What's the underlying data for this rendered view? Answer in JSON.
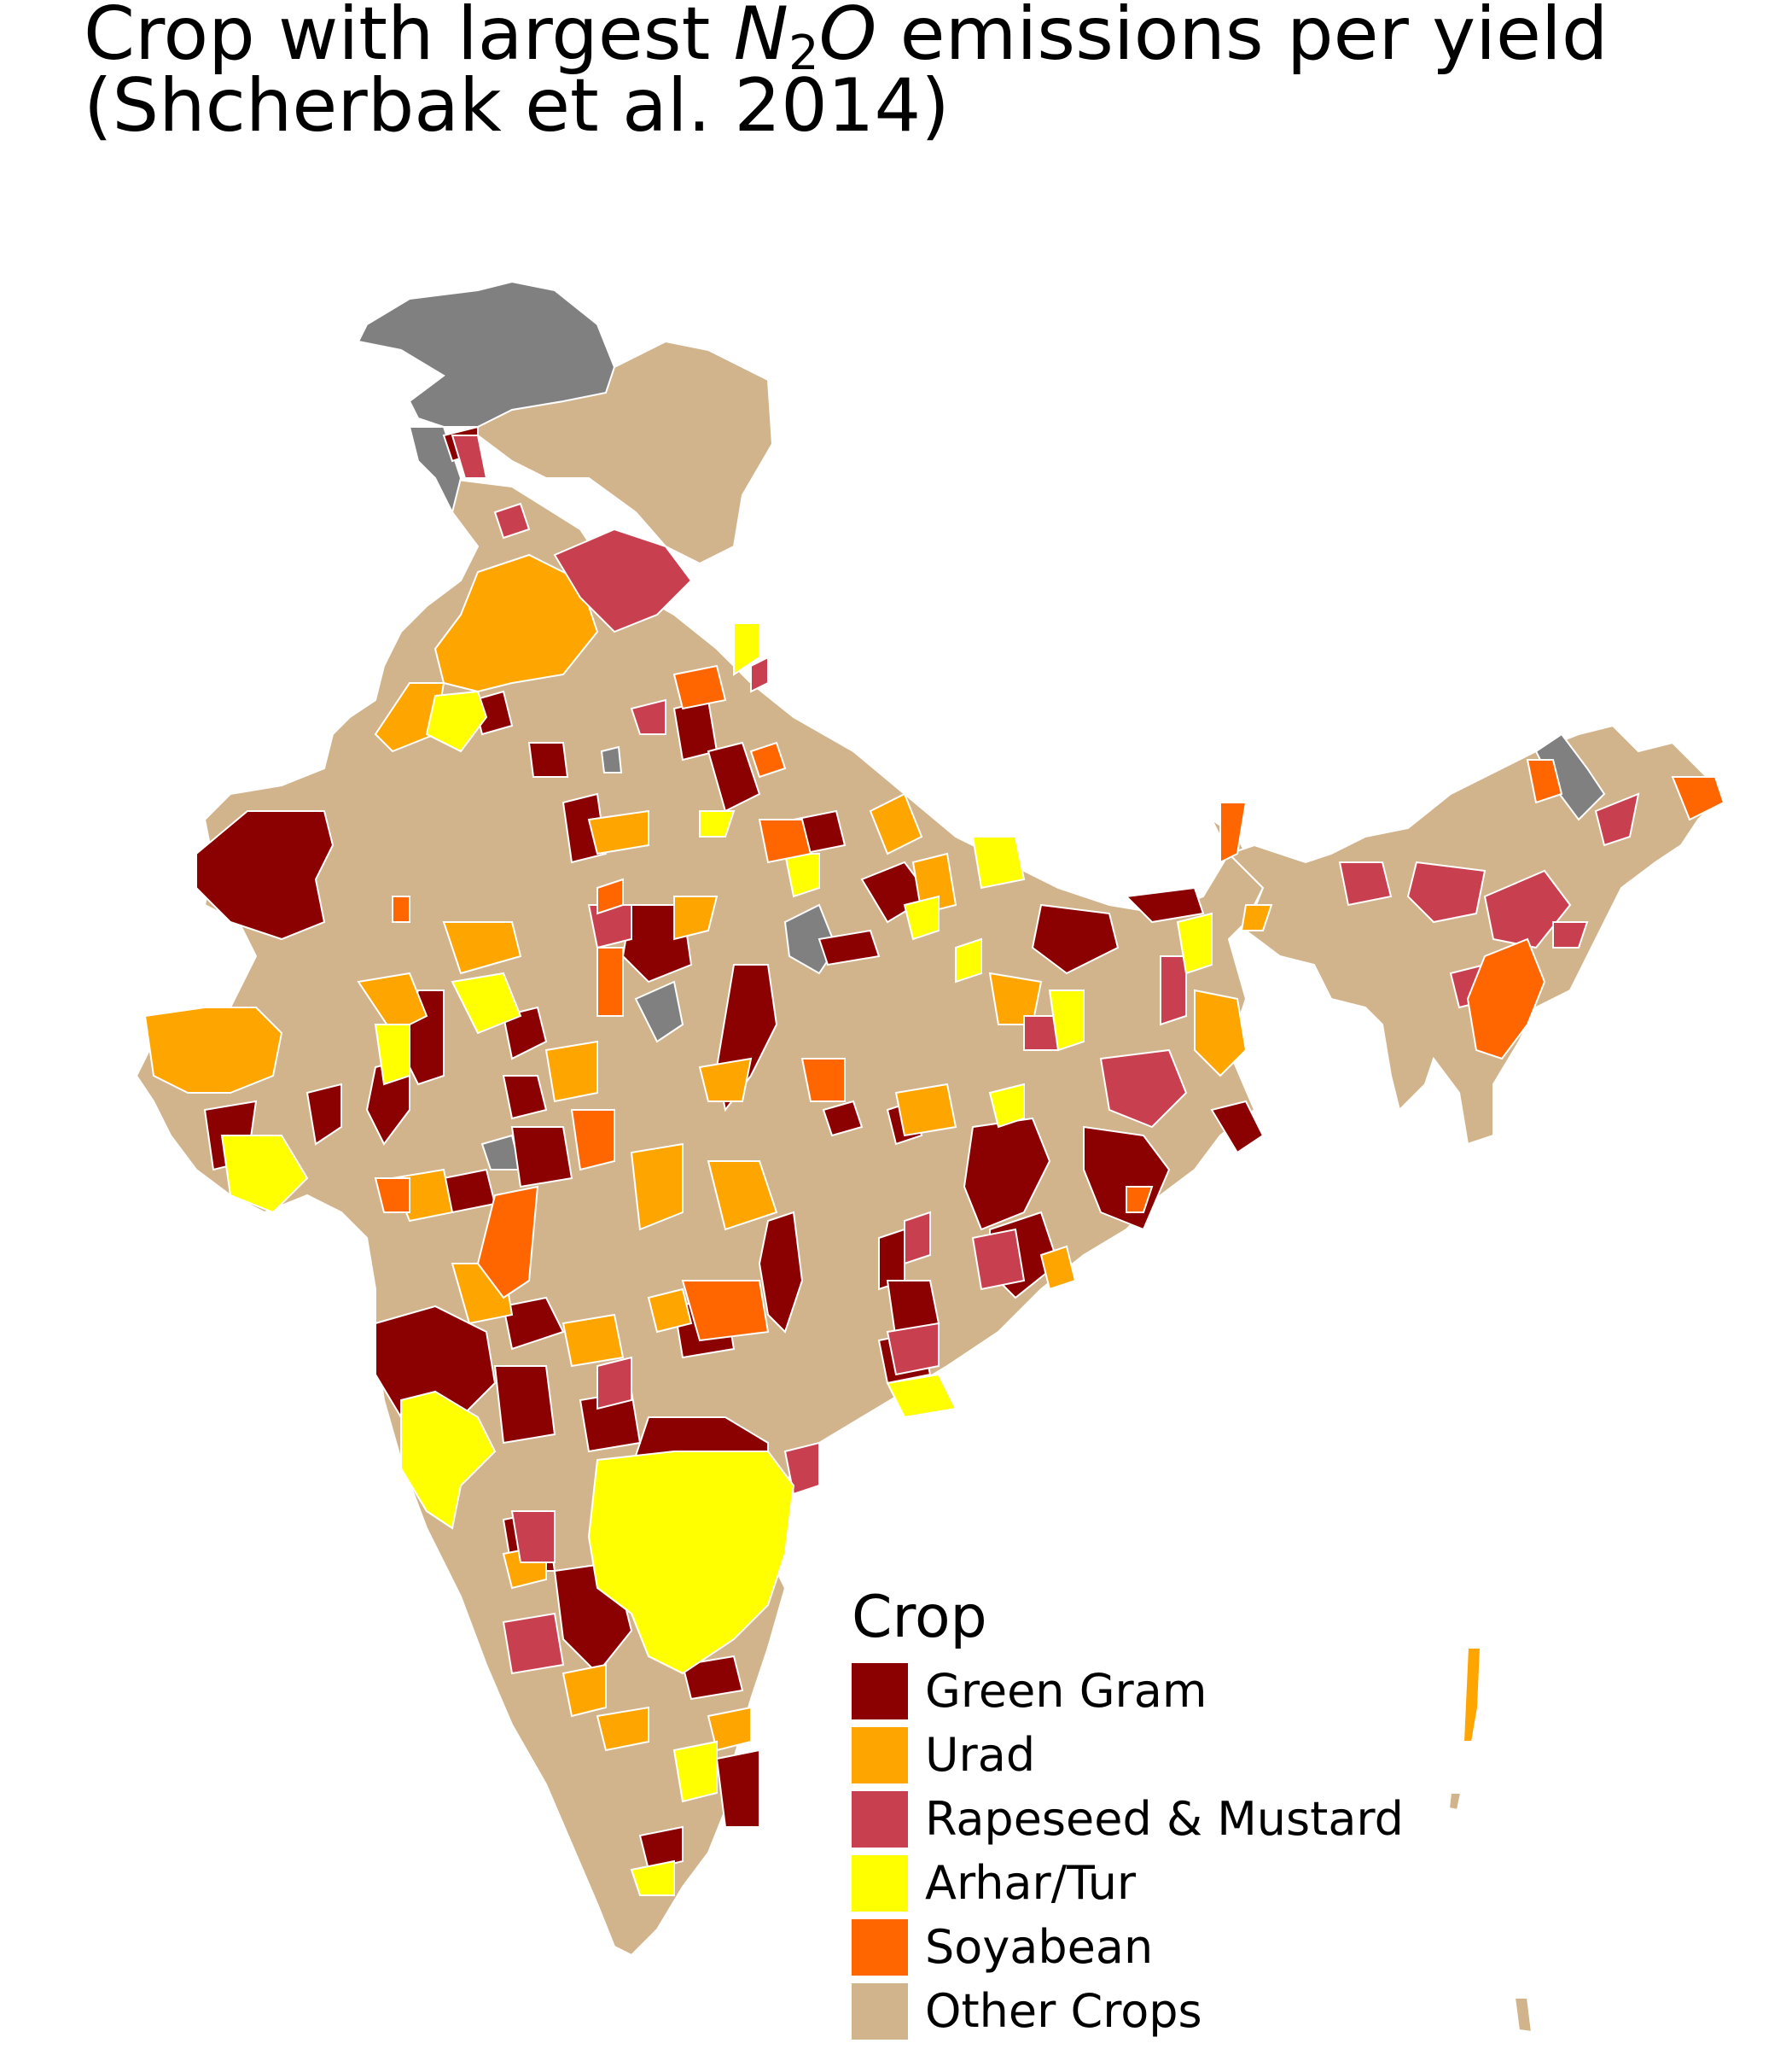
{
  "title": {
    "line1_prefix": "Crop with largest ",
    "symbol": "N",
    "subscript": "2",
    "symbol_suffix": "O",
    "line1_suffix": " emissions per yield",
    "line2": "(Shcherbak et al. 2014)"
  },
  "legend": {
    "title": "Crop",
    "items": [
      {
        "label": "Green Gram",
        "color": "#8b0000"
      },
      {
        "label": "Urad",
        "color": "#ffa500"
      },
      {
        "label": "Rapeseed & Mustard",
        "color": "#c8404f"
      },
      {
        "label": "Arhar/Tur",
        "color": "#ffff00"
      },
      {
        "label": "Soyabean",
        "color": "#ff6600"
      },
      {
        "label": "Other Crops",
        "color": "#d2b48c"
      }
    ]
  },
  "no_data_color": "#808080"
}
